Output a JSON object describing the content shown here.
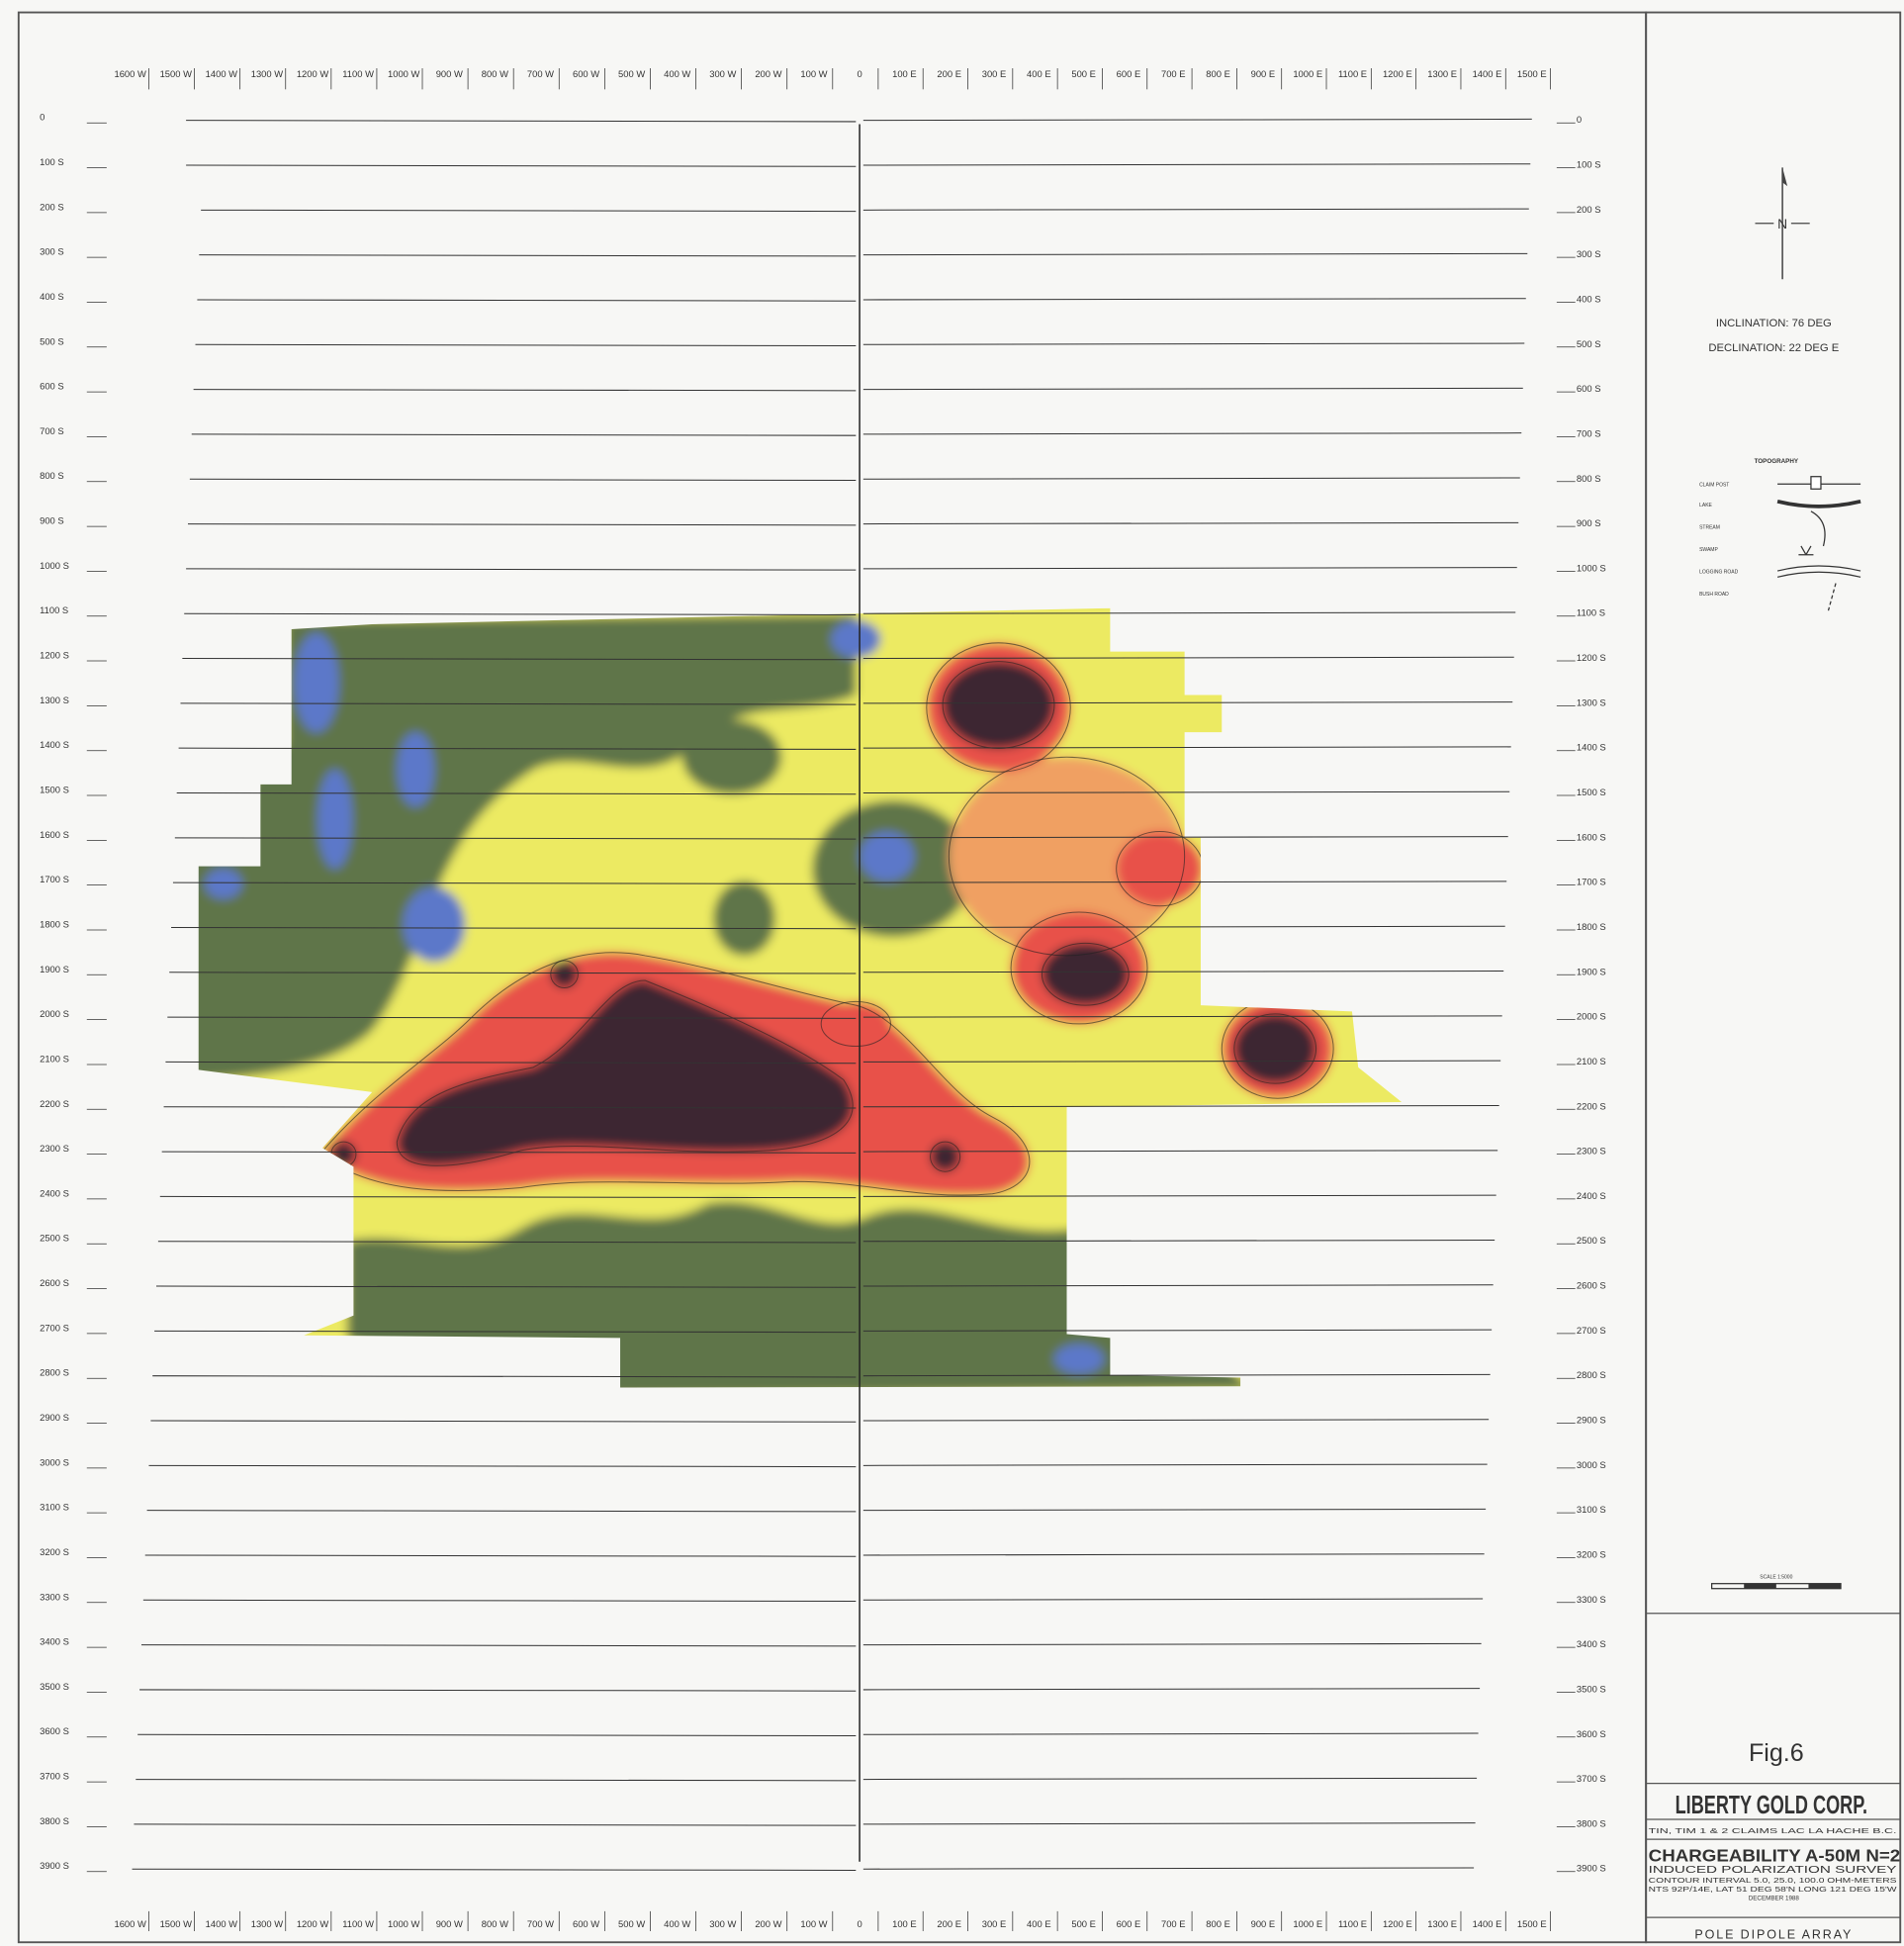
{
  "x_axis_labels": [
    "1600 W",
    "1500 W",
    "1400 W",
    "1300 W",
    "1200 W",
    "1100 W",
    "1000 W",
    "900 W",
    "800 W",
    "700 W",
    "600 W",
    "500 W",
    "400 W",
    "300 W",
    "200 W",
    "100 W",
    "0",
    "100 E",
    "200 E",
    "300 E",
    "400 E",
    "500 E",
    "600 E",
    "700 E",
    "800 E",
    "900 E",
    "1000 E",
    "1100 E",
    "1200 E",
    "1300 E",
    "1400 E",
    "1500 E"
  ],
  "y_axis_labels": [
    "0",
    "100 S",
    "200 S",
    "300 S",
    "400 S",
    "500 S",
    "600 S",
    "700 S",
    "800 S",
    "900 S",
    "1000 S",
    "1100 S",
    "1200 S",
    "1300 S",
    "1400 S",
    "1500 S",
    "1600 S",
    "1700 S",
    "1800 S",
    "1900 S",
    "2000 S",
    "2100 S",
    "2200 S",
    "2300 S",
    "2400 S",
    "2500 S",
    "2600 S",
    "2700 S",
    "2800 S",
    "2900 S",
    "3000 S",
    "3100 S",
    "3200 S",
    "3300 S",
    "3400 S",
    "3500 S",
    "3600 S",
    "3700 S",
    "3800 S",
    "3900 S"
  ],
  "north_arrow": "N",
  "magnetic": {
    "inclination": "INCLINATION: 76 DEG",
    "declination": "DECLINATION: 22 DEG E"
  },
  "legend": {
    "title": "TOPOGRAPHY",
    "items": [
      "CLAIM POST",
      "LAKE",
      "STREAM",
      "SWAMP",
      "LOGGING ROAD",
      "BUSH ROAD"
    ]
  },
  "scale": "SCALE 1:5000",
  "title_block": {
    "figure": "Fig.6",
    "company": "LIBERTY GOLD CORP.",
    "location": "TIN, TIM 1 & 2 CLAIMS LAC LA HACHE B.C.",
    "title": "CHARGEABILITY A-50M N=2",
    "subtitle": "INDUCED POLARIZATION SURVEY",
    "contour": "CONTOUR INTERVAL 5.0, 25.0, 100.0 OHM-METERS",
    "nts": "NTS 92P/14E, LAT 51 DEG 58'N LONG 121 DEG 15'W",
    "date": "DECEMBER 1988",
    "array": "POLE DIPOLE ARRAY"
  }
}
